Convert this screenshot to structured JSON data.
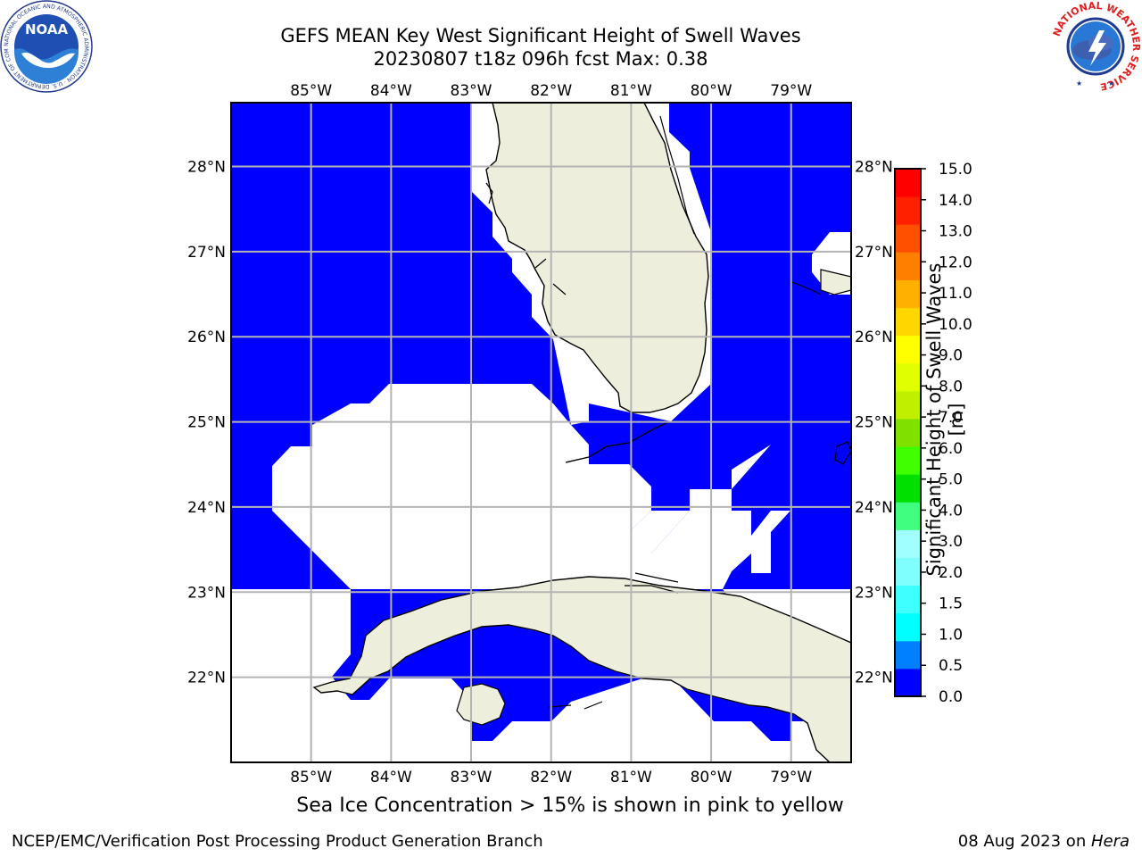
{
  "title": {
    "line1": "GEFS MEAN Key West Significant Height of Swell Waves",
    "line2": "20230807 t18z 096h fcst    Max: 0.38"
  },
  "logos": {
    "left": "NOAA",
    "left_ring_text": "NATIONAL OCEANIC AND ATMOSPHERIC ADMINISTRATION · U.S. DEPARTMENT OF COMMERCE",
    "right_ring_text": "NATIONAL WEATHER SERVICE"
  },
  "map": {
    "lon_ticks": [
      "85°W",
      "84°W",
      "83°W",
      "82°W",
      "81°W",
      "80°W",
      "79°W"
    ],
    "lat_ticks": [
      "28°N",
      "27°N",
      "26°N",
      "25°N",
      "24°N",
      "23°N",
      "22°N"
    ],
    "lon_range": [
      -86.0,
      -78.25
    ],
    "lat_range": [
      21.0,
      28.75
    ],
    "grid": true,
    "colors": {
      "water": "#0000ff",
      "land": "#eeeedc",
      "missing": "#ffffff",
      "grid": "#b4b4b4"
    }
  },
  "chart_data": {
    "type": "heatmap",
    "variable": "Significant Height of Swell Waves",
    "units": "m",
    "max_value": 0.38,
    "colorbar": {
      "label": "Significant Height of Swell Waves [m]",
      "ticks": [
        "0.0",
        "0.5",
        "1.0",
        "1.5",
        "2.0",
        "3.0",
        "4.0",
        "5.0",
        "6.0",
        "7.0",
        "8.0",
        "9.0",
        "10.0",
        "11.0",
        "12.0",
        "13.0",
        "14.0",
        "15.0"
      ],
      "levels": [
        0,
        0.5,
        1.0,
        1.5,
        2.0,
        3.0,
        4.0,
        5.0,
        6.0,
        7.0,
        8.0,
        9.0,
        10.0,
        11.0,
        12.0,
        13.0,
        14.0,
        15.0
      ],
      "colors": [
        "#0000ff",
        "#0080ff",
        "#00ffff",
        "#40ffff",
        "#80ffff",
        "#a0ffff",
        "#40ff80",
        "#00e000",
        "#40ff00",
        "#80e000",
        "#c0f000",
        "#e0ff00",
        "#ffff00",
        "#ffd700",
        "#ffb000",
        "#ff8000",
        "#ff5000",
        "#ff2000",
        "#ff0000"
      ]
    }
  },
  "notes": {
    "ice": "Sea Ice Concentration > 15% is shown in pink to yellow"
  },
  "footer": {
    "left": "NCEP/EMC/Verification Post Processing Product Generation Branch",
    "right_prefix": "08 Aug 2023 on ",
    "right_host": "Hera"
  }
}
